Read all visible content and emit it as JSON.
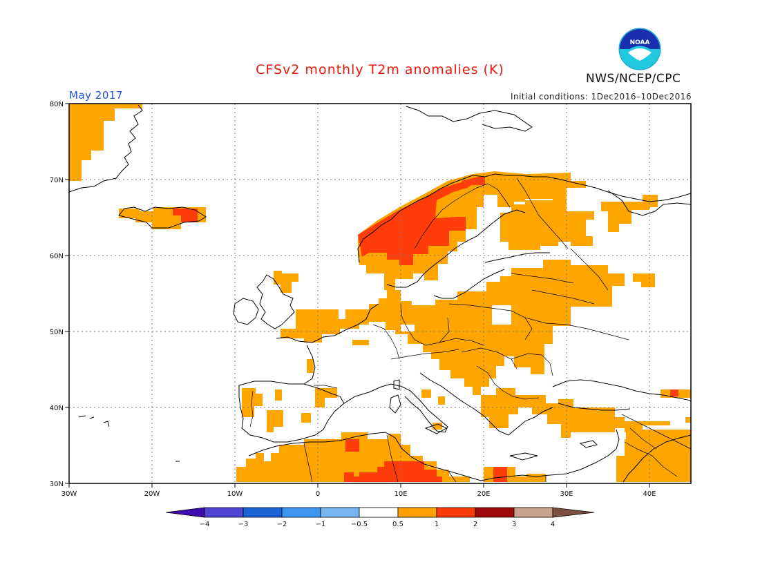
{
  "header": {
    "title": "CFSv2 monthly T2m anomalies (K)",
    "agency": "NWS/NCEP/CPC",
    "period": "May 2017",
    "initial_conditions": "Initial conditions: 1Dec2016–10Dec2016",
    "logo_text": "NOAA"
  },
  "map": {
    "lat_labels": [
      "80N",
      "70N",
      "60N",
      "50N",
      "40N",
      "30N"
    ],
    "lon_labels": [
      "30W",
      "20W",
      "10W",
      "0",
      "10E",
      "20E",
      "30E",
      "40E"
    ],
    "colors": {
      "anom_0_5_1": "#ffa500",
      "anom_1_2": "#ff3d0a",
      "land_line": "#000000"
    }
  },
  "colorbar": {
    "labels": [
      "−4",
      "−3",
      "−2",
      "−1",
      "−0.5",
      "0.5",
      "1",
      "2",
      "3",
      "4"
    ],
    "colors": [
      "#3f0ab0",
      "#5046d6",
      "#1c64d6",
      "#3c96f0",
      "#78b4f0",
      "#ffffff",
      "#ffa000",
      "#fa3c08",
      "#a00a0a",
      "#c8a08c",
      "#7a5040"
    ]
  }
}
